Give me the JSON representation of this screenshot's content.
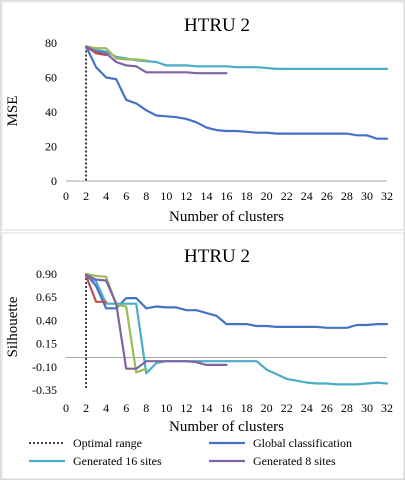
{
  "chart_data": [
    {
      "type": "line",
      "title": "HTRU 2",
      "xlabel": "Number of clusters",
      "ylabel": "MSE",
      "xlim": [
        0,
        32
      ],
      "ylim": [
        0,
        80
      ],
      "xticks": [
        "0",
        "2",
        "4",
        "6",
        "8",
        "10",
        "12",
        "14",
        "16",
        "18",
        "20",
        "22",
        "24",
        "26",
        "28",
        "30",
        "32"
      ],
      "yticks": [
        "0",
        "20",
        "40",
        "60",
        "80"
      ],
      "optimal_range_x": 2,
      "series": [
        {
          "color": "#4472c4",
          "x": [
            2,
            3,
            4,
            5,
            6,
            7,
            8,
            9,
            10,
            11,
            12,
            13,
            14,
            15,
            16,
            17,
            18,
            19,
            20,
            21,
            22,
            23,
            24,
            25,
            26,
            27,
            28,
            29,
            30,
            31,
            32
          ],
          "y": [
            78,
            66,
            60,
            59,
            47,
            45,
            41,
            38,
            37.5,
            37,
            36,
            34,
            31,
            29.5,
            29,
            29,
            28.5,
            28,
            28,
            27.5,
            27.5,
            27.5,
            27.5,
            27.5,
            27.5,
            27.5,
            27.5,
            26.5,
            26.5,
            24.5,
            24.5
          ]
        },
        {
          "color": "#4bacc6",
          "x": [
            2,
            3,
            4,
            5,
            6,
            7,
            8,
            9,
            10,
            11,
            12,
            13,
            14,
            15,
            16,
            17,
            18,
            19,
            20,
            21,
            22,
            23,
            24,
            25,
            26,
            27,
            28,
            29,
            30,
            31,
            32
          ],
          "y": [
            78,
            76,
            75,
            72,
            71,
            70,
            69.5,
            69,
            67,
            67,
            67,
            66.5,
            66.5,
            66.5,
            66.5,
            66,
            66,
            66,
            65.5,
            65,
            65,
            65,
            65,
            65,
            65,
            65,
            65,
            65,
            65,
            65,
            65
          ]
        },
        {
          "color": "#9bbb59",
          "x": [
            2,
            3,
            4,
            5,
            6,
            7,
            8
          ],
          "y": [
            78,
            77,
            77,
            71,
            70.5,
            70.5,
            70
          ]
        },
        {
          "color": "#c0504d",
          "x": [
            2,
            3,
            4
          ],
          "y": [
            78,
            74,
            73
          ]
        },
        {
          "color": "#8064a2",
          "x": [
            2,
            3,
            4,
            5,
            6,
            7,
            8,
            9,
            10,
            11,
            12,
            13,
            14,
            15,
            16
          ],
          "y": [
            78,
            75,
            74,
            69,
            67,
            66.5,
            63,
            63,
            63,
            63,
            63,
            62.5,
            62.5,
            62.5,
            62.5
          ]
        }
      ]
    },
    {
      "type": "line",
      "title": "HTRU 2",
      "xlabel": "Number of clusters",
      "ylabel": "Silhouette",
      "xlim": [
        0,
        32
      ],
      "ylim": [
        -0.35,
        0.9
      ],
      "xticks": [
        "0",
        "2",
        "4",
        "6",
        "8",
        "10",
        "12",
        "14",
        "16",
        "18",
        "20",
        "22",
        "24",
        "26",
        "28",
        "30",
        "32"
      ],
      "yticks": [
        "0.90",
        "0.65",
        "0.40",
        "0.15",
        "-0.10",
        "-0.35"
      ],
      "optimal_range_x": 2,
      "series": [
        {
          "color": "#4472c4",
          "x": [
            2,
            3,
            4,
            5,
            6,
            7,
            8,
            9,
            10,
            11,
            12,
            13,
            14,
            15,
            16,
            17,
            18,
            19,
            20,
            21,
            22,
            23,
            24,
            25,
            26,
            27,
            28,
            29,
            30,
            31,
            32
          ],
          "y": [
            0.9,
            0.77,
            0.53,
            0.53,
            0.64,
            0.64,
            0.53,
            0.55,
            0.54,
            0.54,
            0.51,
            0.51,
            0.48,
            0.45,
            0.36,
            0.36,
            0.36,
            0.34,
            0.34,
            0.33,
            0.33,
            0.33,
            0.33,
            0.33,
            0.32,
            0.32,
            0.32,
            0.35,
            0.35,
            0.36,
            0.36
          ]
        },
        {
          "color": "#4bacc6",
          "x": [
            2,
            3,
            4,
            5,
            6,
            7,
            8,
            9,
            10,
            11,
            12,
            13,
            14,
            15,
            16,
            17,
            18,
            19,
            20,
            21,
            22,
            23,
            24,
            25,
            26,
            27,
            28,
            29,
            30,
            31,
            32
          ],
          "y": [
            0.9,
            0.82,
            0.58,
            0.58,
            0.58,
            0.58,
            -0.17,
            -0.06,
            -0.04,
            -0.04,
            -0.04,
            -0.04,
            -0.04,
            -0.04,
            -0.04,
            -0.04,
            -0.04,
            -0.04,
            -0.13,
            -0.18,
            -0.23,
            -0.25,
            -0.27,
            -0.28,
            -0.28,
            -0.29,
            -0.29,
            -0.29,
            -0.28,
            -0.27,
            -0.28
          ]
        },
        {
          "color": "#9bbb59",
          "x": [
            2,
            3,
            4,
            5,
            6,
            7,
            8
          ],
          "y": [
            0.9,
            0.88,
            0.87,
            0.57,
            0.55,
            -0.16,
            -0.12
          ]
        },
        {
          "color": "#c0504d",
          "x": [
            2,
            3,
            4
          ],
          "y": [
            0.88,
            0.6,
            0.6
          ]
        },
        {
          "color": "#8064a2",
          "x": [
            2,
            3,
            4,
            5,
            6,
            7,
            8,
            9,
            10,
            11,
            12,
            13,
            14,
            15,
            16
          ],
          "y": [
            0.89,
            0.84,
            0.83,
            0.58,
            -0.12,
            -0.12,
            -0.04,
            -0.04,
            -0.04,
            -0.04,
            -0.04,
            -0.05,
            -0.08,
            -0.08,
            -0.08
          ]
        }
      ]
    }
  ],
  "legend": {
    "items": [
      {
        "label": "Optimal range",
        "color": "#000000",
        "dashed": true
      },
      {
        "label": "Global classification",
        "color": "#4472c4",
        "dashed": false
      },
      {
        "label": "Generated 16 sites",
        "color": "#4bacc6",
        "dashed": false
      },
      {
        "label": "Generated 8 sites",
        "color": "#8064a2",
        "dashed": false
      }
    ]
  }
}
